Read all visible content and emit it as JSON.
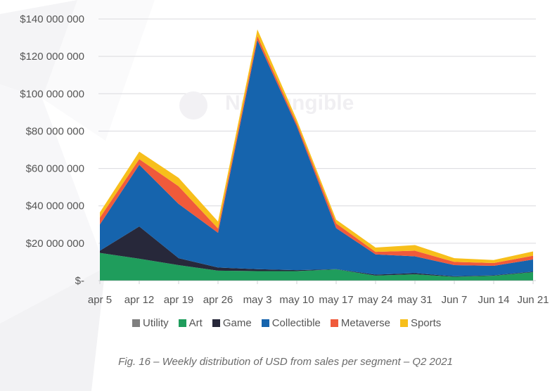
{
  "watermark": "NonFungible",
  "caption": "Fig. 16 – Weekly distribution of USD from sales per segment – Q2 2021",
  "chart_data": {
    "type": "area",
    "stacked": true,
    "title": "",
    "xlabel": "",
    "ylabel": "",
    "ylim": [
      0,
      140000000
    ],
    "grid": true,
    "legend_position": "bottom",
    "y_ticks": [
      0,
      20000000,
      40000000,
      60000000,
      80000000,
      100000000,
      120000000,
      140000000
    ],
    "y_tick_labels": [
      "$-",
      "$20 000 000",
      "$40 000 000",
      "$60 000 000",
      "$80 000 000",
      "$100 000 000",
      "$120 000 000",
      "$140 000 000"
    ],
    "categories": [
      "apr 5",
      "apr 12",
      "apr 19",
      "apr 26",
      "may 3",
      "may 10",
      "may 17",
      "may 24",
      "may 31",
      "Jun 7",
      "Jun 14",
      "Jun 21"
    ],
    "series": [
      {
        "name": "Utility",
        "color": "#7f7f7f",
        "values": [
          100000,
          100000,
          100000,
          100000,
          100000,
          100000,
          100000,
          100000,
          100000,
          100000,
          100000,
          100000
        ]
      },
      {
        "name": "Art",
        "color": "#1f9d5c",
        "values": [
          14700000,
          11600000,
          8200000,
          5200000,
          5000000,
          5000000,
          5900000,
          2600000,
          3300000,
          1900000,
          2500000,
          4400000
        ]
      },
      {
        "name": "Game",
        "color": "#27283a",
        "values": [
          1200000,
          17300000,
          3700000,
          1700000,
          1000000,
          500000,
          100000,
          500000,
          600000,
          300000,
          200000,
          300000
        ]
      },
      {
        "name": "Collectible",
        "color": "#1664ad",
        "values": [
          14000000,
          33000000,
          29000000,
          18600000,
          122600000,
          77000000,
          22000000,
          10800000,
          9000000,
          6000000,
          5100000,
          6500000
        ]
      },
      {
        "name": "Metaverse",
        "color": "#f05a3b",
        "values": [
          3700000,
          3000000,
          9500000,
          2300000,
          2200000,
          1500000,
          2500000,
          1400000,
          3000000,
          1700000,
          1500000,
          2000000
        ]
      },
      {
        "name": "Sports",
        "color": "#f7bf1b",
        "values": [
          2800000,
          4000000,
          4500000,
          3700000,
          3500000,
          2000000,
          2000000,
          2300000,
          3000000,
          2000000,
          1600000,
          2300000
        ]
      }
    ]
  }
}
